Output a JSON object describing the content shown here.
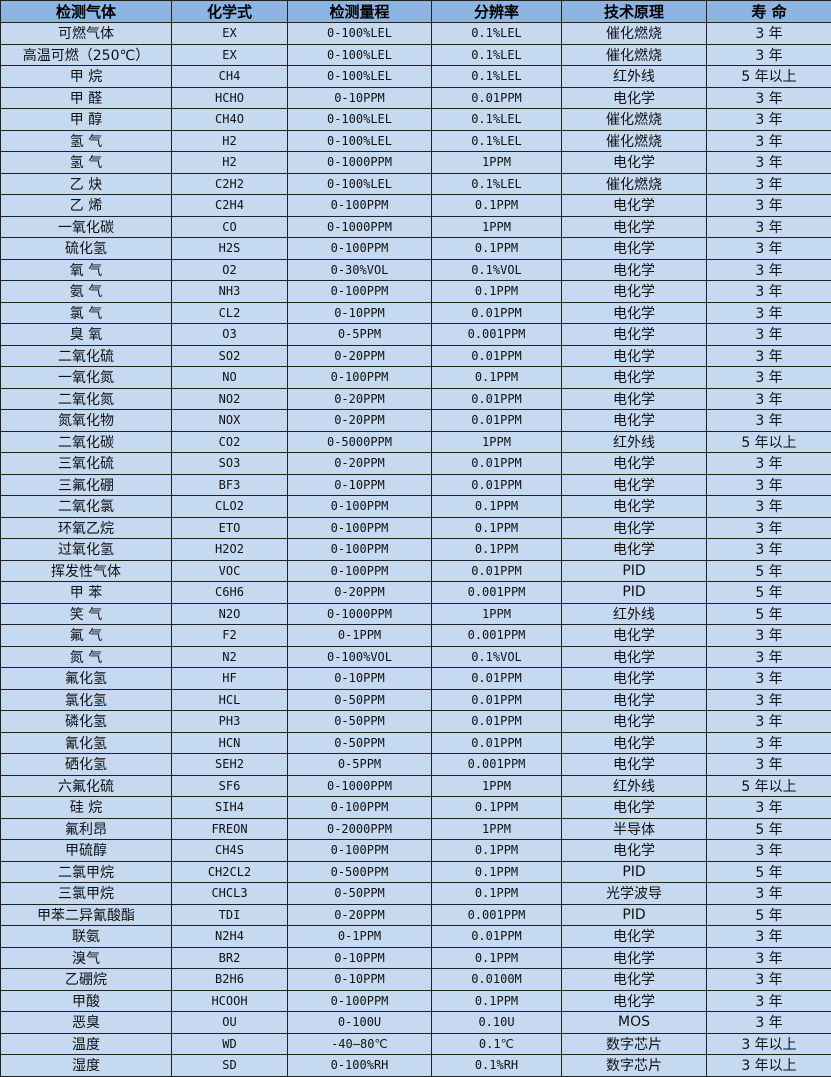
{
  "table": {
    "headers": [
      "检测气体",
      "化学式",
      "检测量程",
      "分辨率",
      "技术原理",
      "寿 命"
    ],
    "rows": [
      [
        "可燃气体",
        "EX",
        "0-100%LEL",
        "0.1%LEL",
        "催化燃烧",
        "3 年"
      ],
      [
        "高温可燃（250℃）",
        "EX",
        "0-100%LEL",
        "0.1%LEL",
        "催化燃烧",
        "3 年"
      ],
      [
        "甲 烷",
        "CH4",
        "0-100%LEL",
        "0.1%LEL",
        "红外线",
        "5 年以上"
      ],
      [
        "甲 醛",
        "HCHO",
        "0-10PPM",
        "0.01PPM",
        "电化学",
        "3 年"
      ],
      [
        "甲 醇",
        "CH4O",
        "0-100%LEL",
        "0.1%LEL",
        "催化燃烧",
        "3 年"
      ],
      [
        "氢 气",
        "H2",
        "0-100%LEL",
        "0.1%LEL",
        "催化燃烧",
        "3 年"
      ],
      [
        "氢 气",
        "H2",
        "0-1000PPM",
        "1PPM",
        "电化学",
        "3 年"
      ],
      [
        "乙 炔",
        "C2H2",
        "0-100%LEL",
        "0.1%LEL",
        "催化燃烧",
        "3 年"
      ],
      [
        "乙 烯",
        "C2H4",
        "0-100PPM",
        "0.1PPM",
        "电化学",
        "3 年"
      ],
      [
        "一氧化碳",
        "CO",
        "0-1000PPM",
        "1PPM",
        "电化学",
        "3 年"
      ],
      [
        "硫化氢",
        "H2S",
        "0-100PPM",
        "0.1PPM",
        "电化学",
        "3 年"
      ],
      [
        "氧 气",
        "O2",
        "0-30%VOL",
        "0.1%VOL",
        "电化学",
        "3 年"
      ],
      [
        "氨 气",
        "NH3",
        "0-100PPM",
        "0.1PPM",
        "电化学",
        "3 年"
      ],
      [
        "氯 气",
        "CL2",
        "0-10PPM",
        "0.01PPM",
        "电化学",
        "3 年"
      ],
      [
        "臭 氧",
        "O3",
        "0-5PPM",
        "0.001PPM",
        "电化学",
        "3 年"
      ],
      [
        "二氧化硫",
        "SO2",
        "0-20PPM",
        "0.01PPM",
        "电化学",
        "3 年"
      ],
      [
        "一氧化氮",
        "NO",
        "0-100PPM",
        "0.1PPM",
        "电化学",
        "3 年"
      ],
      [
        "二氧化氮",
        "NO2",
        "0-20PPM",
        "0.01PPM",
        "电化学",
        "3 年"
      ],
      [
        "氮氧化物",
        "NOX",
        "0-20PPM",
        "0.01PPM",
        "电化学",
        "3 年"
      ],
      [
        "二氧化碳",
        "CO2",
        "0-5000PPM",
        "1PPM",
        "红外线",
        "5 年以上"
      ],
      [
        "三氧化硫",
        "SO3",
        "0-20PPM",
        "0.01PPM",
        "电化学",
        "3 年"
      ],
      [
        "三氟化硼",
        "BF3",
        "0-10PPM",
        "0.01PPM",
        "电化学",
        "3 年"
      ],
      [
        "二氧化氯",
        "CLO2",
        "0-100PPM",
        "0.1PPM",
        "电化学",
        "3 年"
      ],
      [
        "环氧乙烷",
        "ETO",
        "0-100PPM",
        "0.1PPM",
        "电化学",
        "3 年"
      ],
      [
        "过氧化氢",
        "H2O2",
        "0-100PPM",
        "0.1PPM",
        "电化学",
        "3 年"
      ],
      [
        "挥发性气体",
        "VOC",
        "0-100PPM",
        "0.01PPM",
        "PID",
        "5 年"
      ],
      [
        "甲 苯",
        "C6H6",
        "0-20PPM",
        "0.001PPM",
        "PID",
        "5 年"
      ],
      [
        "笑 气",
        "N2O",
        "0-1000PPM",
        "1PPM",
        "红外线",
        "5 年"
      ],
      [
        "氟 气",
        "F2",
        "0-1PPM",
        "0.001PPM",
        "电化学",
        "3 年"
      ],
      [
        "氮 气",
        "N2",
        "0-100%VOL",
        "0.1%VOL",
        "电化学",
        "3 年"
      ],
      [
        "氟化氢",
        "HF",
        "0-10PPM",
        "0.01PPM",
        "电化学",
        "3 年"
      ],
      [
        "氯化氢",
        "HCL",
        "0-50PPM",
        "0.01PPM",
        "电化学",
        "3 年"
      ],
      [
        "磷化氢",
        "PH3",
        "0-50PPM",
        "0.01PPM",
        "电化学",
        "3 年"
      ],
      [
        "氰化氢",
        "HCN",
        "0-50PPM",
        "0.01PPM",
        "电化学",
        "3 年"
      ],
      [
        "硒化氢",
        "SEH2",
        "0-5PPM",
        "0.001PPM",
        "电化学",
        "3 年"
      ],
      [
        "六氟化硫",
        "SF6",
        "0-1000PPM",
        "1PPM",
        "红外线",
        "5 年以上"
      ],
      [
        "硅 烷",
        "SIH4",
        "0-100PPM",
        "0.1PPM",
        "电化学",
        "3 年"
      ],
      [
        "氟利昂",
        "FREON",
        "0-2000PPM",
        "1PPM",
        "半导体",
        "5 年"
      ],
      [
        "甲硫醇",
        "CH4S",
        "0-100PPM",
        "0.1PPM",
        "电化学",
        "3 年"
      ],
      [
        "二氯甲烷",
        "CH2CL2",
        "0-500PPM",
        "0.1PPM",
        "PID",
        "5 年"
      ],
      [
        "三氯甲烷",
        "CHCL3",
        "0-50PPM",
        "0.1PPM",
        "光学波导",
        "3 年"
      ],
      [
        "甲苯二异氰酸酯",
        "TDI",
        "0-20PPM",
        "0.001PPM",
        "PID",
        "5 年"
      ],
      [
        "联氨",
        "N2H4",
        "0-1PPM",
        "0.01PPM",
        "电化学",
        "3 年"
      ],
      [
        "溴气",
        "BR2",
        "0-10PPM",
        "0.1PPM",
        "电化学",
        "3 年"
      ],
      [
        "乙硼烷",
        "B2H6",
        "0-10PPM",
        "0.0100M",
        "电化学",
        "3 年"
      ],
      [
        "甲酸",
        "HCOOH",
        "0-100PPM",
        "0.1PPM",
        "电化学",
        "3 年"
      ],
      [
        "恶臭",
        "OU",
        "0-100U",
        "0.10U",
        "MOS",
        "3 年"
      ],
      [
        "温度",
        "WD",
        "-40—80℃",
        "0.1℃",
        "数字芯片",
        "3 年以上"
      ],
      [
        "湿度",
        "SD",
        "0-100%RH",
        "0.1%RH",
        "数字芯片",
        "3 年以上"
      ]
    ],
    "colors": {
      "header_bg": "#8DB4E2",
      "row_bg": "#C5D9F1",
      "border": "#222222"
    }
  }
}
